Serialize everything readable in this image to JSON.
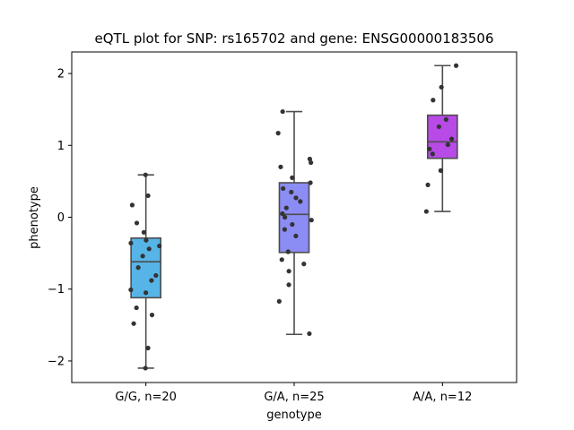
{
  "chart_data": {
    "type": "box",
    "title": "eQTL plot for SNP: rs165702 and gene: ENSG00000183506",
    "xlabel": "genotype",
    "ylabel": "phenotype",
    "ylim": [
      -2.3,
      2.3
    ],
    "yticks": [
      -2,
      -1,
      0,
      1,
      2
    ],
    "ytick_labels": [
      "−2",
      "−1",
      "0",
      "1",
      "2"
    ],
    "categories": [
      "G/G, n=20",
      "G/A, n=25",
      "A/A, n=12"
    ],
    "colors": [
      "#57b4e6",
      "#8c8cf5",
      "#b84ae8"
    ],
    "groups": [
      {
        "name": "G/G, n=20",
        "whisker_low": -2.1,
        "q1": -1.12,
        "median": -0.62,
        "q3": -0.29,
        "whisker_high": 0.59,
        "points": [
          0.59,
          0.3,
          0.17,
          -0.08,
          -0.21,
          -0.32,
          -0.36,
          -0.4,
          -0.44,
          -0.54,
          -0.7,
          -0.81,
          -0.88,
          -1.01,
          -1.05,
          -1.26,
          -1.36,
          -1.48,
          -1.82,
          -2.1
        ]
      },
      {
        "name": "G/A, n=25",
        "whisker_low": -1.63,
        "q1": -0.49,
        "median": 0.04,
        "q3": 0.48,
        "whisker_high": 1.47,
        "points": [
          1.47,
          1.17,
          0.81,
          0.76,
          0.7,
          0.55,
          0.48,
          0.4,
          0.35,
          0.27,
          0.22,
          0.13,
          0.05,
          -0.04,
          -0.1,
          -0.17,
          -0.26,
          -0.48,
          -0.59,
          -0.65,
          -0.75,
          -0.94,
          -1.17,
          -1.62,
          0.0
        ]
      },
      {
        "name": "A/A, n=12",
        "whisker_low": 0.08,
        "q1": 0.82,
        "median": 1.05,
        "q3": 1.42,
        "whisker_high": 2.11,
        "points": [
          2.11,
          1.81,
          1.63,
          1.36,
          1.26,
          1.09,
          1.01,
          0.95,
          0.88,
          0.65,
          0.45,
          0.08
        ]
      }
    ]
  }
}
